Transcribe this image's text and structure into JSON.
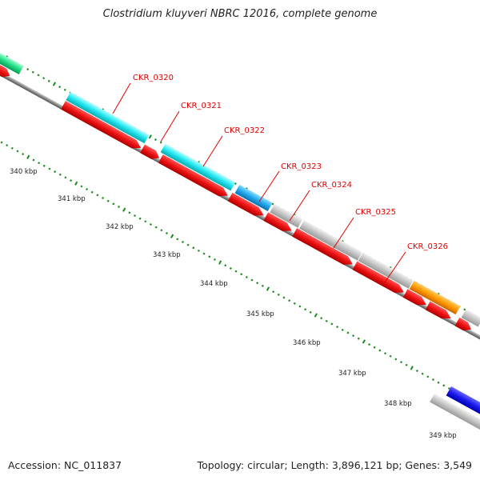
{
  "title": "Clostridium kluyveri NBRC 12016, complete genome",
  "footer": {
    "accession": "Accession: NC_011837",
    "summary": "Topology: circular; Length: 3,896,121 bp; Genes: 3,549"
  },
  "colors": {
    "cds_red": "#ee1111",
    "cyan": "#22e6ee",
    "blue_light": "#22a8ee",
    "gray": "#c0c0c0",
    "orange": "#ff9900",
    "green": "#22dd88",
    "blue_dark": "#1a1aee",
    "backbone": "#808080",
    "tick_green": "#1a8c1a",
    "label_red": "#e00000"
  },
  "scale_labels": [
    "340 kbp",
    "341 kbp",
    "342 kbp",
    "343 kbp",
    "344 kbp",
    "345 kbp",
    "346 kbp",
    "347 kbp",
    "348 kbp",
    "349 kbp"
  ],
  "gene_labels": [
    "CKR_0320",
    "CKR_0321",
    "CKR_0322",
    "CKR_0323",
    "CKR_0324",
    "CKR_0325",
    "CKR_0326"
  ]
}
